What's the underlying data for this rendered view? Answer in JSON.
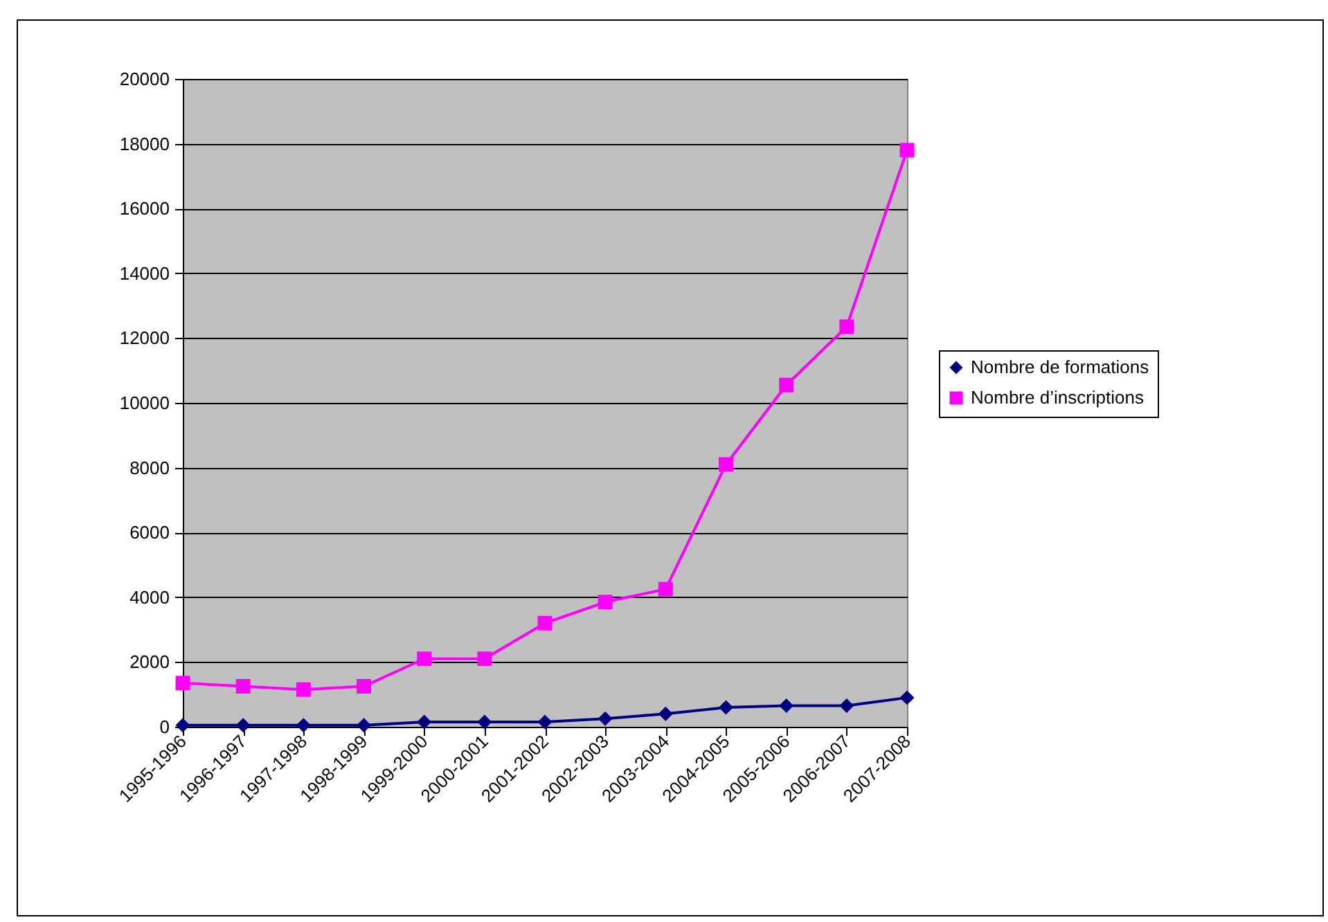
{
  "chart_data": {
    "type": "line",
    "categories": [
      "1995-1996",
      "1996-1997",
      "1997-1998",
      "1998-1999",
      "1999-2000",
      "2000-2001",
      "2001-2002",
      "2002-2003",
      "2003-2004",
      "2004-2005",
      "2005-2006",
      "2006-2007",
      "2007-2008"
    ],
    "series": [
      {
        "name": "Nombre de formations",
        "color": "#000080",
        "marker": "diamond",
        "values": [
          50,
          50,
          50,
          50,
          150,
          150,
          150,
          250,
          400,
          600,
          650,
          650,
          900
        ]
      },
      {
        "name": "Nombre d’inscriptions",
        "color": "#ff00ff",
        "marker": "square",
        "values": [
          1350,
          1250,
          1150,
          1250,
          2100,
          2100,
          3200,
          3850,
          4250,
          8100,
          10550,
          12350,
          17800
        ]
      }
    ],
    "ylim": [
      0,
      20000
    ],
    "yticks": [
      0,
      2000,
      4000,
      6000,
      8000,
      10000,
      12000,
      14000,
      16000,
      18000,
      20000
    ],
    "grid": "y",
    "legend": "right",
    "line_style": "solid"
  }
}
